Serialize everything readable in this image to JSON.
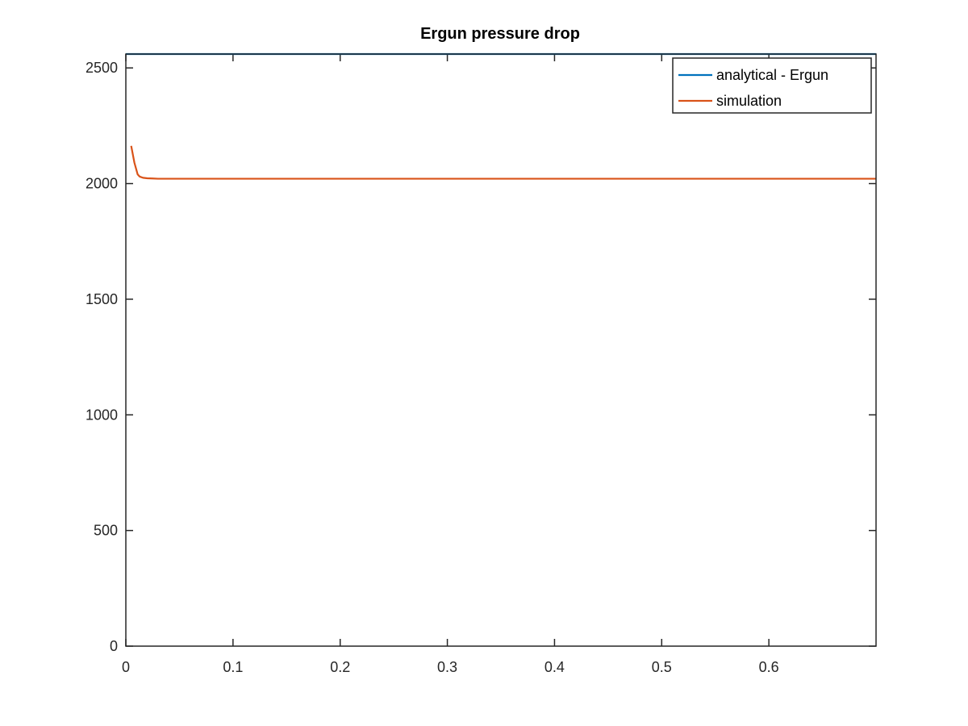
{
  "chart_data": {
    "type": "line",
    "title": "Ergun pressure drop",
    "xlabel": "",
    "ylabel": "",
    "xlim": [
      0,
      0.7
    ],
    "ylim": [
      0,
      2560
    ],
    "x_ticks": [
      0,
      0.1,
      0.2,
      0.3,
      0.4,
      0.5,
      0.6
    ],
    "x_tick_labels": [
      "0",
      "0.1",
      "0.2",
      "0.3",
      "0.4",
      "0.5",
      "0.6"
    ],
    "y_ticks": [
      0,
      500,
      1000,
      1500,
      2000,
      2500
    ],
    "y_tick_labels": [
      "0",
      "500",
      "1000",
      "1500",
      "2000",
      "2500"
    ],
    "grid": false,
    "box": true,
    "legend_position": "top-right",
    "series": [
      {
        "name": "analytical - Ergun",
        "color": "#0072BD",
        "x": [
          0,
          0.7
        ],
        "y": [
          2560,
          2560
        ]
      },
      {
        "name": "simulation",
        "color": "#D95319",
        "x": [
          0.005,
          0.008,
          0.011,
          0.013,
          0.016,
          0.02,
          0.025,
          0.03,
          0.05,
          0.1,
          0.2,
          0.3,
          0.4,
          0.5,
          0.6,
          0.7
        ],
        "y": [
          2163,
          2090,
          2040,
          2030,
          2025,
          2023,
          2022,
          2021,
          2021,
          2021,
          2021,
          2021,
          2021,
          2021,
          2021,
          2021
        ]
      }
    ]
  }
}
